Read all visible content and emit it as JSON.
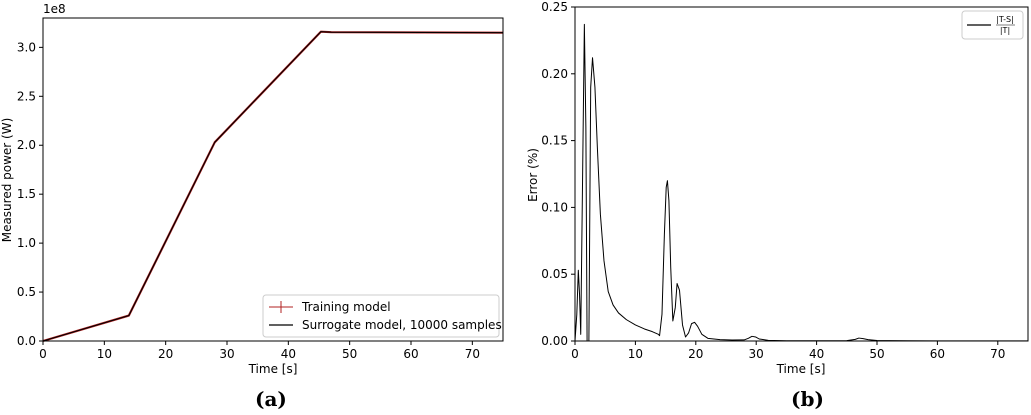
{
  "chart_data": [
    {
      "type": "line",
      "panel_label": "(a)",
      "xlabel": "Time [s]",
      "ylabel": "Measured power (W)",
      "y_offset_text": "1e8",
      "xlim": [
        0,
        75
      ],
      "ylim": [
        0,
        3.3
      ],
      "xticks": [
        0,
        10,
        20,
        30,
        40,
        50,
        60,
        70
      ],
      "yticks": [
        0.0,
        0.5,
        1.0,
        1.5,
        2.0,
        2.5,
        3.0
      ],
      "xtick_labels": [
        "0",
        "10",
        "20",
        "30",
        "40",
        "50",
        "60",
        "70"
      ],
      "ytick_labels": [
        "0.0",
        "0.5",
        "1.0",
        "1.5",
        "2.0",
        "2.5",
        "3.0"
      ],
      "grid": false,
      "legend_position": "lower-right",
      "series": [
        {
          "name": "Training model",
          "color": "#b22222",
          "x": [
            0,
            14,
            28,
            45.3,
            47,
            75
          ],
          "y": [
            0.0,
            0.26,
            2.03,
            3.16,
            3.155,
            3.15
          ]
        },
        {
          "name": "Surrogate model, 10000 samples",
          "color": "#000000",
          "x": [
            0,
            14,
            28,
            45.3,
            47,
            75
          ],
          "y": [
            0.0,
            0.26,
            2.03,
            3.16,
            3.155,
            3.15
          ]
        }
      ]
    },
    {
      "type": "line",
      "panel_label": "(b)",
      "xlabel": "Time [s]",
      "ylabel": "Error (%)",
      "xlim": [
        0,
        75
      ],
      "ylim": [
        0,
        0.25
      ],
      "xticks": [
        0,
        10,
        20,
        30,
        40,
        50,
        60,
        70
      ],
      "yticks": [
        0.0,
        0.05,
        0.1,
        0.15,
        0.2,
        0.25
      ],
      "xtick_labels": [
        "0",
        "10",
        "20",
        "30",
        "40",
        "50",
        "60",
        "70"
      ],
      "ytick_labels": [
        "0.00",
        "0.05",
        "0.10",
        "0.15",
        "0.20",
        "0.25"
      ],
      "grid": false,
      "legend_position": "top-right",
      "series": [
        {
          "name_numerator": "|T-S|",
          "name_denominator": "|T|",
          "color": "#000000",
          "x": [
            0,
            0.3,
            0.55,
            0.75,
            0.95,
            1.25,
            1.55,
            1.8,
            2.0,
            2.3,
            2.6,
            2.9,
            3.3,
            3.7,
            4.2,
            4.8,
            5.5,
            6.3,
            7.2,
            8.5,
            10,
            11.5,
            12.8,
            13.8,
            14.0,
            14.4,
            14.8,
            15.1,
            15.3,
            15.55,
            15.85,
            16.2,
            16.6,
            16.9,
            17.3,
            17.8,
            18.3,
            18.8,
            19.3,
            19.8,
            20.3,
            21,
            22,
            24,
            26,
            28,
            28.7,
            29.3,
            29.9,
            30.5,
            32,
            35,
            40,
            45,
            46.4,
            47,
            47.7,
            48.5,
            50,
            55,
            60,
            65,
            70,
            75
          ],
          "y": [
            0.0,
            0.02,
            0.053,
            0.035,
            0.005,
            0.12,
            0.237,
            0.16,
            0.0,
            0.0,
            0.19,
            0.212,
            0.19,
            0.145,
            0.095,
            0.06,
            0.037,
            0.027,
            0.021,
            0.016,
            0.012,
            0.009,
            0.007,
            0.005,
            0.004,
            0.02,
            0.08,
            0.115,
            0.12,
            0.105,
            0.055,
            0.015,
            0.025,
            0.043,
            0.038,
            0.012,
            0.003,
            0.006,
            0.013,
            0.014,
            0.011,
            0.005,
            0.002,
            0.001,
            0.0007,
            0.0008,
            0.002,
            0.0035,
            0.003,
            0.0015,
            0.0005,
            0.0002,
            0.0002,
            0.0003,
            0.0012,
            0.0022,
            0.0018,
            0.001,
            0.0004,
            0.0002,
            0.0001,
            0.0001,
            0.0001,
            0.0001
          ]
        }
      ]
    }
  ]
}
